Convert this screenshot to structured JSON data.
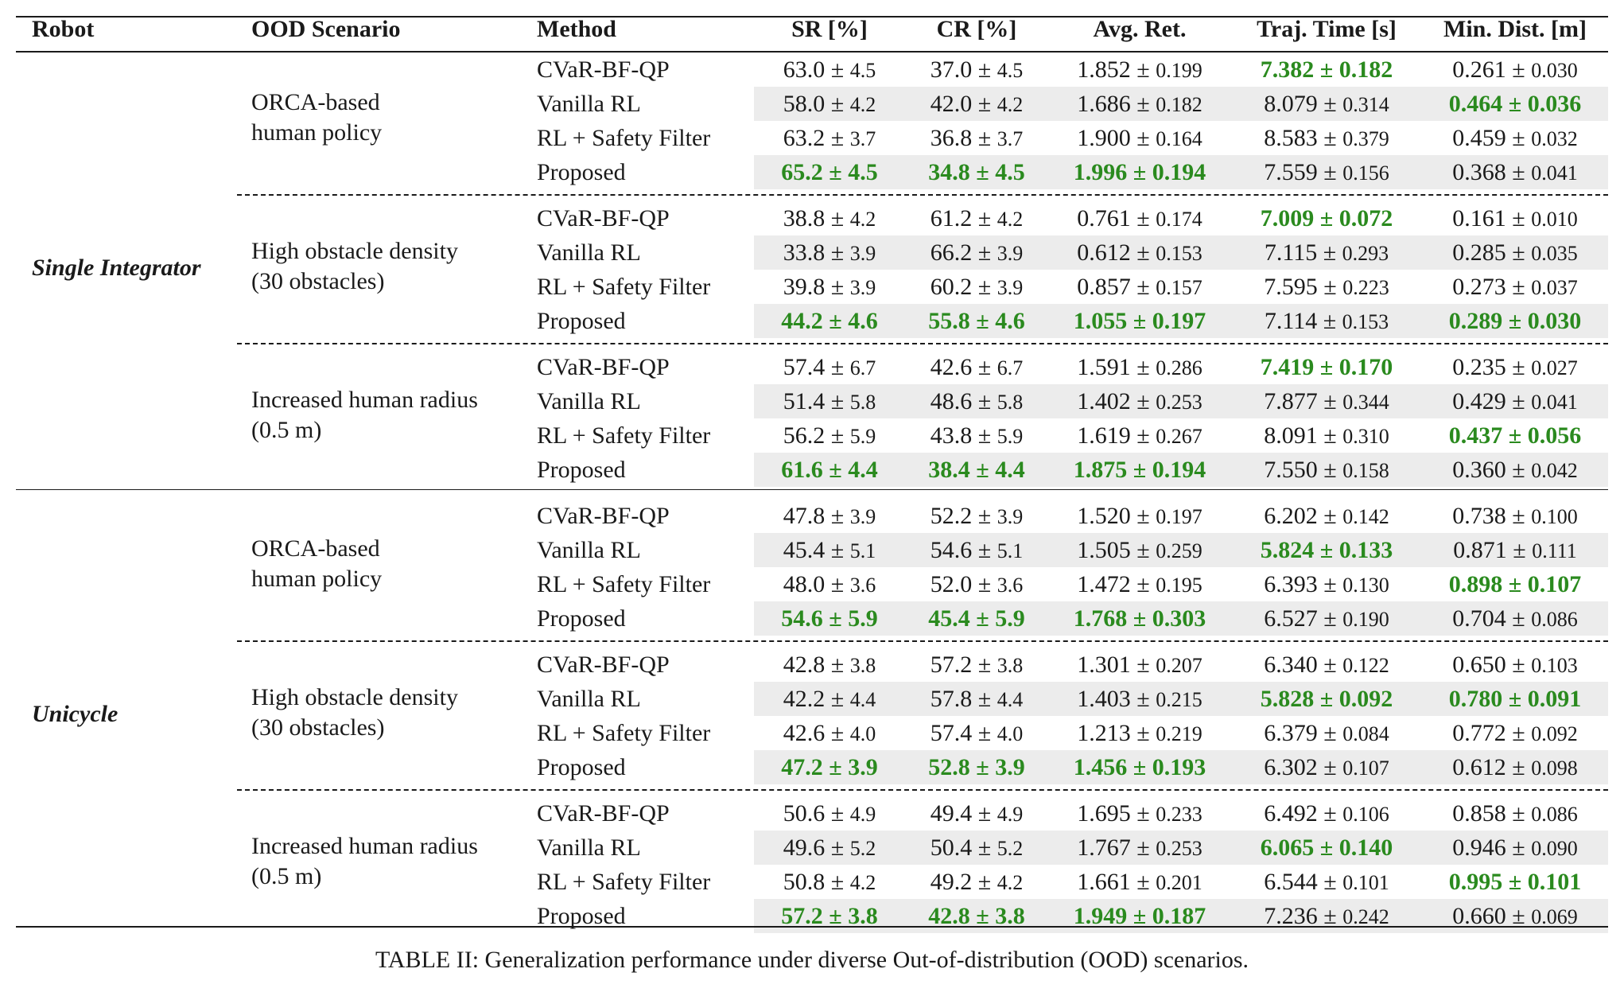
{
  "headers": {
    "robot": "Robot",
    "scenario": "OOD Scenario",
    "method": "Method",
    "sr": "SR [%]",
    "cr": "CR [%]",
    "ret": "Avg. Ret.",
    "time": "Traj. Time [s]",
    "dist": "Min. Dist. [m]"
  },
  "colors": {
    "best": "#2a8a1e",
    "row_shade": "#ececec",
    "rule": "#1a1a1a"
  },
  "robots": [
    {
      "name": "Single Integrator",
      "scenarios": [
        {
          "line1": "ORCA-based",
          "line2": "human policy",
          "rows": [
            {
              "method": "CVaR-BF-QP",
              "shade": false,
              "vals": [
                [
                  "63.0",
                  "4.5",
                  false
                ],
                [
                  "37.0",
                  "4.5",
                  false
                ],
                [
                  "1.852",
                  "0.199",
                  false
                ],
                [
                  "7.382",
                  "0.182",
                  true
                ],
                [
                  "0.261",
                  "0.030",
                  false
                ]
              ]
            },
            {
              "method": "Vanilla RL",
              "shade": true,
              "vals": [
                [
                  "58.0",
                  "4.2",
                  false
                ],
                [
                  "42.0",
                  "4.2",
                  false
                ],
                [
                  "1.686",
                  "0.182",
                  false
                ],
                [
                  "8.079",
                  "0.314",
                  false
                ],
                [
                  "0.464",
                  "0.036",
                  true
                ]
              ]
            },
            {
              "method": "RL + Safety Filter",
              "shade": false,
              "vals": [
                [
                  "63.2",
                  "3.7",
                  false
                ],
                [
                  "36.8",
                  "3.7",
                  false
                ],
                [
                  "1.900",
                  "0.164",
                  false
                ],
                [
                  "8.583",
                  "0.379",
                  false
                ],
                [
                  "0.459",
                  "0.032",
                  false
                ]
              ]
            },
            {
              "method": "Proposed",
              "shade": true,
              "vals": [
                [
                  "65.2",
                  "4.5",
                  true
                ],
                [
                  "34.8",
                  "4.5",
                  true
                ],
                [
                  "1.996",
                  "0.194",
                  true
                ],
                [
                  "7.559",
                  "0.156",
                  false
                ],
                [
                  "0.368",
                  "0.041",
                  false
                ]
              ]
            }
          ]
        },
        {
          "line1": "High obstacle density",
          "line2": "(30 obstacles)",
          "rows": [
            {
              "method": "CVaR-BF-QP",
              "shade": false,
              "vals": [
                [
                  "38.8",
                  "4.2",
                  false
                ],
                [
                  "61.2",
                  "4.2",
                  false
                ],
                [
                  "0.761",
                  "0.174",
                  false
                ],
                [
                  "7.009",
                  "0.072",
                  true
                ],
                [
                  "0.161",
                  "0.010",
                  false
                ]
              ]
            },
            {
              "method": "Vanilla RL",
              "shade": true,
              "vals": [
                [
                  "33.8",
                  "3.9",
                  false
                ],
                [
                  "66.2",
                  "3.9",
                  false
                ],
                [
                  "0.612",
                  "0.153",
                  false
                ],
                [
                  "7.115",
                  "0.293",
                  false
                ],
                [
                  "0.285",
                  "0.035",
                  false
                ]
              ]
            },
            {
              "method": "RL + Safety Filter",
              "shade": false,
              "vals": [
                [
                  "39.8",
                  "3.9",
                  false
                ],
                [
                  "60.2",
                  "3.9",
                  false
                ],
                [
                  "0.857",
                  "0.157",
                  false
                ],
                [
                  "7.595",
                  "0.223",
                  false
                ],
                [
                  "0.273",
                  "0.037",
                  false
                ]
              ]
            },
            {
              "method": "Proposed",
              "shade": true,
              "vals": [
                [
                  "44.2",
                  "4.6",
                  true
                ],
                [
                  "55.8",
                  "4.6",
                  true
                ],
                [
                  "1.055",
                  "0.197",
                  true
                ],
                [
                  "7.114",
                  "0.153",
                  false
                ],
                [
                  "0.289",
                  "0.030",
                  true
                ]
              ]
            }
          ]
        },
        {
          "line1": "Increased human radius",
          "line2": "(0.5 m)",
          "rows": [
            {
              "method": "CVaR-BF-QP",
              "shade": false,
              "vals": [
                [
                  "57.4",
                  "6.7",
                  false
                ],
                [
                  "42.6",
                  "6.7",
                  false
                ],
                [
                  "1.591",
                  "0.286",
                  false
                ],
                [
                  "7.419",
                  "0.170",
                  true
                ],
                [
                  "0.235",
                  "0.027",
                  false
                ]
              ]
            },
            {
              "method": "Vanilla RL",
              "shade": true,
              "vals": [
                [
                  "51.4",
                  "5.8",
                  false
                ],
                [
                  "48.6",
                  "5.8",
                  false
                ],
                [
                  "1.402",
                  "0.253",
                  false
                ],
                [
                  "7.877",
                  "0.344",
                  false
                ],
                [
                  "0.429",
                  "0.041",
                  false
                ]
              ]
            },
            {
              "method": "RL + Safety Filter",
              "shade": false,
              "vals": [
                [
                  "56.2",
                  "5.9",
                  false
                ],
                [
                  "43.8",
                  "5.9",
                  false
                ],
                [
                  "1.619",
                  "0.267",
                  false
                ],
                [
                  "8.091",
                  "0.310",
                  false
                ],
                [
                  "0.437",
                  "0.056",
                  true
                ]
              ]
            },
            {
              "method": "Proposed",
              "shade": true,
              "vals": [
                [
                  "61.6",
                  "4.4",
                  true
                ],
                [
                  "38.4",
                  "4.4",
                  true
                ],
                [
                  "1.875",
                  "0.194",
                  true
                ],
                [
                  "7.550",
                  "0.158",
                  false
                ],
                [
                  "0.360",
                  "0.042",
                  false
                ]
              ]
            }
          ]
        }
      ]
    },
    {
      "name": "Unicycle",
      "scenarios": [
        {
          "line1": "ORCA-based",
          "line2": "human policy",
          "rows": [
            {
              "method": "CVaR-BF-QP",
              "shade": false,
              "vals": [
                [
                  "47.8",
                  "3.9",
                  false
                ],
                [
                  "52.2",
                  "3.9",
                  false
                ],
                [
                  "1.520",
                  "0.197",
                  false
                ],
                [
                  "6.202",
                  "0.142",
                  false
                ],
                [
                  "0.738",
                  "0.100",
                  false
                ]
              ]
            },
            {
              "method": "Vanilla RL",
              "shade": true,
              "vals": [
                [
                  "45.4",
                  "5.1",
                  false
                ],
                [
                  "54.6",
                  "5.1",
                  false
                ],
                [
                  "1.505",
                  "0.259",
                  false
                ],
                [
                  "5.824",
                  "0.133",
                  true
                ],
                [
                  "0.871",
                  "0.111",
                  false
                ]
              ]
            },
            {
              "method": "RL + Safety Filter",
              "shade": false,
              "vals": [
                [
                  "48.0",
                  "3.6",
                  false
                ],
                [
                  "52.0",
                  "3.6",
                  false
                ],
                [
                  "1.472",
                  "0.195",
                  false
                ],
                [
                  "6.393",
                  "0.130",
                  false
                ],
                [
                  "0.898",
                  "0.107",
                  true
                ]
              ]
            },
            {
              "method": "Proposed",
              "shade": true,
              "vals": [
                [
                  "54.6",
                  "5.9",
                  true
                ],
                [
                  "45.4",
                  "5.9",
                  true
                ],
                [
                  "1.768",
                  "0.303",
                  true
                ],
                [
                  "6.527",
                  "0.190",
                  false
                ],
                [
                  "0.704",
                  "0.086",
                  false
                ]
              ]
            }
          ]
        },
        {
          "line1": "High obstacle density",
          "line2": "(30 obstacles)",
          "rows": [
            {
              "method": "CVaR-BF-QP",
              "shade": false,
              "vals": [
                [
                  "42.8",
                  "3.8",
                  false
                ],
                [
                  "57.2",
                  "3.8",
                  false
                ],
                [
                  "1.301",
                  "0.207",
                  false
                ],
                [
                  "6.340",
                  "0.122",
                  false
                ],
                [
                  "0.650",
                  "0.103",
                  false
                ]
              ]
            },
            {
              "method": "Vanilla RL",
              "shade": true,
              "vals": [
                [
                  "42.2",
                  "4.4",
                  false
                ],
                [
                  "57.8",
                  "4.4",
                  false
                ],
                [
                  "1.403",
                  "0.215",
                  false
                ],
                [
                  "5.828",
                  "0.092",
                  true
                ],
                [
                  "0.780",
                  "0.091",
                  true
                ]
              ]
            },
            {
              "method": "RL + Safety Filter",
              "shade": false,
              "vals": [
                [
                  "42.6",
                  "4.0",
                  false
                ],
                [
                  "57.4",
                  "4.0",
                  false
                ],
                [
                  "1.213",
                  "0.219",
                  false
                ],
                [
                  "6.379",
                  "0.084",
                  false
                ],
                [
                  "0.772",
                  "0.092",
                  false
                ]
              ]
            },
            {
              "method": "Proposed",
              "shade": true,
              "vals": [
                [
                  "47.2",
                  "3.9",
                  true
                ],
                [
                  "52.8",
                  "3.9",
                  true
                ],
                [
                  "1.456",
                  "0.193",
                  true
                ],
                [
                  "6.302",
                  "0.107",
                  false
                ],
                [
                  "0.612",
                  "0.098",
                  false
                ]
              ]
            }
          ]
        },
        {
          "line1": "Increased human radius",
          "line2": "(0.5 m)",
          "rows": [
            {
              "method": "CVaR-BF-QP",
              "shade": false,
              "vals": [
                [
                  "50.6",
                  "4.9",
                  false
                ],
                [
                  "49.4",
                  "4.9",
                  false
                ],
                [
                  "1.695",
                  "0.233",
                  false
                ],
                [
                  "6.492",
                  "0.106",
                  false
                ],
                [
                  "0.858",
                  "0.086",
                  false
                ]
              ]
            },
            {
              "method": "Vanilla RL",
              "shade": true,
              "vals": [
                [
                  "49.6",
                  "5.2",
                  false
                ],
                [
                  "50.4",
                  "5.2",
                  false
                ],
                [
                  "1.767",
                  "0.253",
                  false
                ],
                [
                  "6.065",
                  "0.140",
                  true
                ],
                [
                  "0.946",
                  "0.090",
                  false
                ]
              ]
            },
            {
              "method": "RL + Safety Filter",
              "shade": false,
              "vals": [
                [
                  "50.8",
                  "4.2",
                  false
                ],
                [
                  "49.2",
                  "4.2",
                  false
                ],
                [
                  "1.661",
                  "0.201",
                  false
                ],
                [
                  "6.544",
                  "0.101",
                  false
                ],
                [
                  "0.995",
                  "0.101",
                  true
                ]
              ]
            },
            {
              "method": "Proposed",
              "shade": true,
              "vals": [
                [
                  "57.2",
                  "3.8",
                  true
                ],
                [
                  "42.8",
                  "3.8",
                  true
                ],
                [
                  "1.949",
                  "0.187",
                  true
                ],
                [
                  "7.236",
                  "0.242",
                  false
                ],
                [
                  "0.660",
                  "0.069",
                  false
                ]
              ]
            }
          ]
        }
      ]
    }
  ],
  "caption": "TABLE II: Generalization performance under diverse Out-of-distribution (OOD) scenarios."
}
